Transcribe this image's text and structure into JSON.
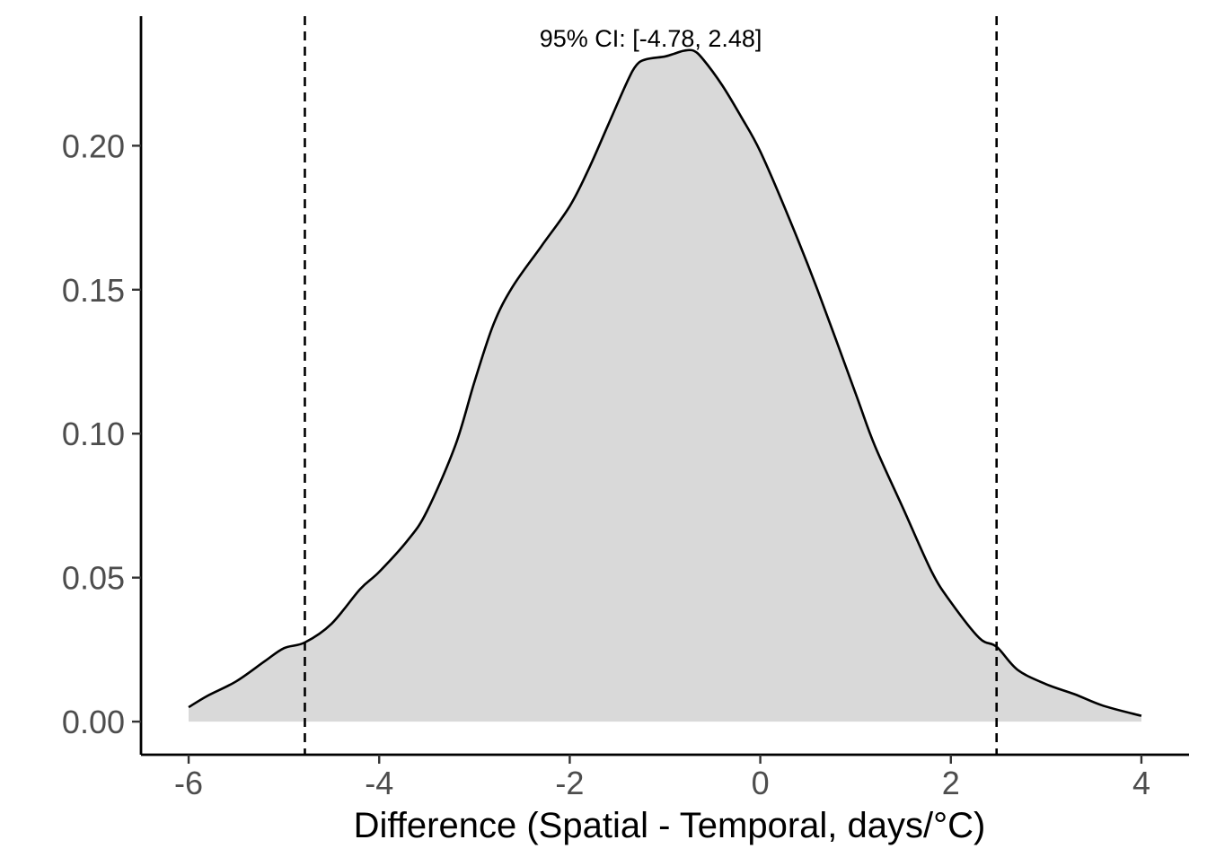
{
  "chart_data": {
    "type": "area",
    "title": "",
    "xlabel": "Difference (Spatial - Temporal, days/°C)",
    "ylabel": "",
    "xlim": [
      -6.5,
      4.5
    ],
    "ylim": [
      -0.0115,
      0.245
    ],
    "x_ticks": [
      -6,
      -4,
      -2,
      0,
      2,
      4
    ],
    "x_tick_labels": [
      "-6",
      "-4",
      "-2",
      "0",
      "2",
      "4"
    ],
    "y_ticks": [
      0.0,
      0.05,
      0.1,
      0.15,
      0.2
    ],
    "y_tick_labels": [
      "0.00",
      "0.05",
      "0.10",
      "0.15",
      "0.20"
    ],
    "grid": false,
    "legend": "none",
    "fill_color": "#d9d9d9",
    "line_color": "#000000",
    "series": [
      {
        "x": [
          -6.0,
          -5.8,
          -5.5,
          -5.2,
          -5.0,
          -4.78,
          -4.5,
          -4.2,
          -4.0,
          -3.7,
          -3.5,
          -3.2,
          -3.0,
          -2.8,
          -2.6,
          -2.3,
          -2.0,
          -1.8,
          -1.6,
          -1.4,
          -1.3,
          -1.2,
          -1.0,
          -0.9,
          -0.8,
          -0.7,
          -0.6,
          -0.4,
          -0.2,
          0.0,
          0.3,
          0.6,
          1.0,
          1.2,
          1.5,
          1.8,
          2.0,
          2.3,
          2.48,
          2.7,
          3.0,
          3.3,
          3.6,
          4.0
        ],
        "y": [
          0.005,
          0.009,
          0.014,
          0.021,
          0.0255,
          0.0275,
          0.034,
          0.046,
          0.052,
          0.063,
          0.073,
          0.096,
          0.118,
          0.138,
          0.151,
          0.165,
          0.179,
          0.192,
          0.207,
          0.222,
          0.228,
          0.23,
          0.231,
          0.232,
          0.233,
          0.233,
          0.23,
          0.221,
          0.21,
          0.198,
          0.175,
          0.15,
          0.114,
          0.096,
          0.074,
          0.052,
          0.0415,
          0.029,
          0.026,
          0.018,
          0.013,
          0.0095,
          0.0055,
          0.002
        ]
      }
    ],
    "vlines": [
      -4.78,
      2.48
    ],
    "annotations": [
      {
        "text": "95% CI: [-4.78, 2.48]",
        "x": -1.15,
        "y": 0.2375
      }
    ]
  }
}
